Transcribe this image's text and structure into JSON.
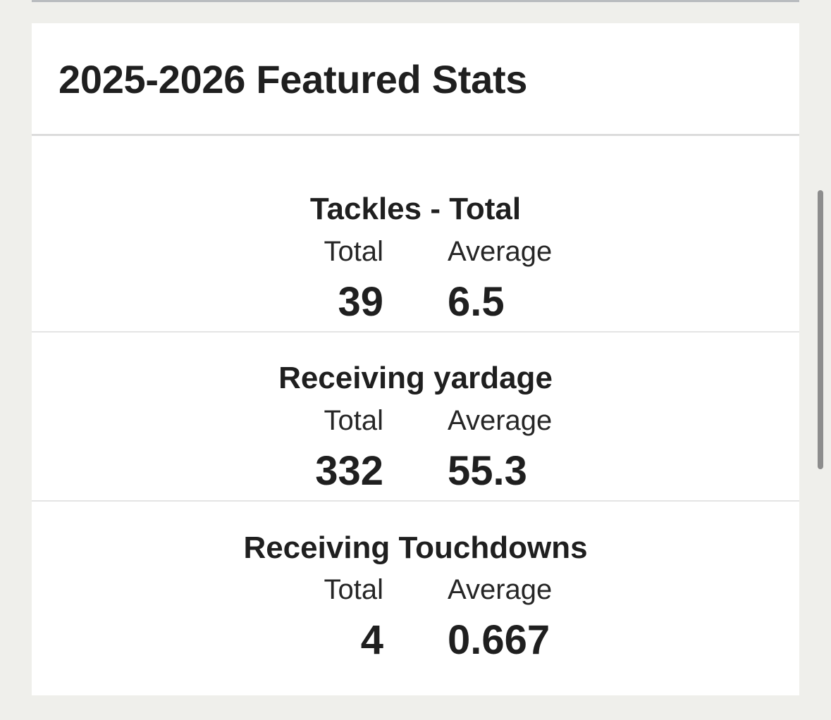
{
  "header": {
    "title": "2025-2026 Featured Stats"
  },
  "columns": {
    "total_label": "Total",
    "average_label": "Average"
  },
  "stats": [
    {
      "name": "Tackles - Total",
      "total": "39",
      "average": "6.5"
    },
    {
      "name": "Receiving yardage",
      "total": "332",
      "average": "55.3"
    },
    {
      "name": "Receiving Touchdowns",
      "total": "4",
      "average": "0.667"
    }
  ]
}
